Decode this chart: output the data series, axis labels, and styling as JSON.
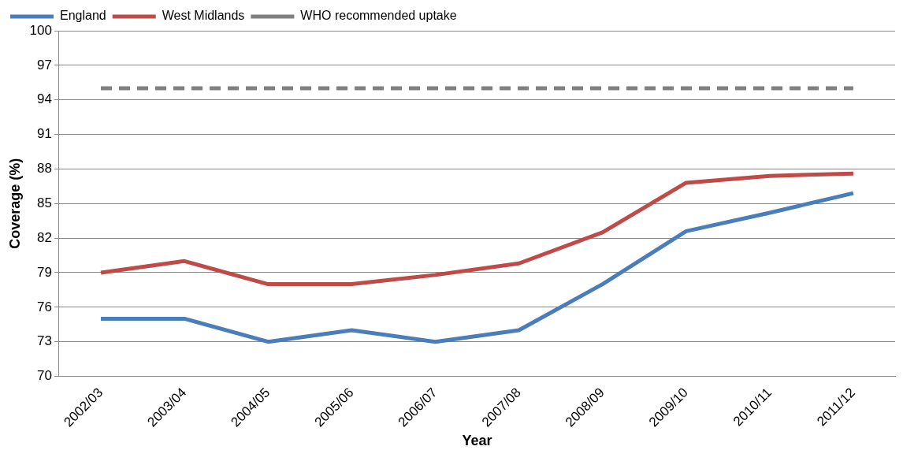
{
  "chart_data": {
    "type": "line",
    "xlabel": "Year",
    "ylabel": "Coverage (%)",
    "categories": [
      "2002/03",
      "2003/04",
      "2004/05",
      "2005/06",
      "2006/07",
      "2007/08",
      "2008/09",
      "2009/10",
      "2010/11",
      "2011/12"
    ],
    "series": [
      {
        "name": "England",
        "color": "#4a7ebb",
        "values": [
          75,
          75,
          73,
          74,
          73,
          74,
          78,
          82.6,
          84.2,
          85.9
        ]
      },
      {
        "name": "West Midlands",
        "color": "#be4b48",
        "values": [
          79,
          80,
          78,
          78,
          78.8,
          79.8,
          82.5,
          86.8,
          87.4,
          87.6
        ]
      },
      {
        "name": "WHO recommended uptake",
        "color": "#808080",
        "line_style": "dashed",
        "values": [
          95,
          95,
          95,
          95,
          95,
          95,
          95,
          95,
          95,
          95
        ]
      }
    ],
    "ylim": [
      70,
      100
    ],
    "yticks": [
      70,
      73,
      76,
      79,
      82,
      85,
      88,
      91,
      94,
      97,
      100
    ],
    "grid": "y",
    "legend": "top left",
    "marker": "none"
  }
}
